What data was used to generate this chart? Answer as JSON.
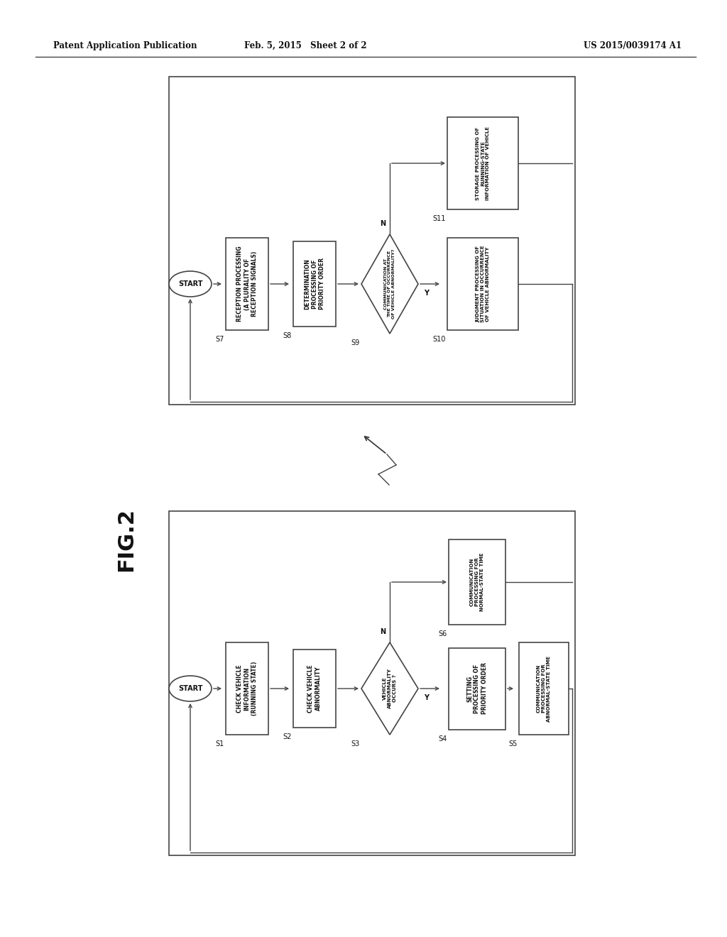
{
  "header_left": "Patent Application Publication",
  "header_mid": "Feb. 5, 2015   Sheet 2 of 2",
  "header_right": "US 2015/0039174 A1",
  "fig_label": "FIG.2",
  "bg_color": "#ffffff",
  "text_color": "#111111"
}
